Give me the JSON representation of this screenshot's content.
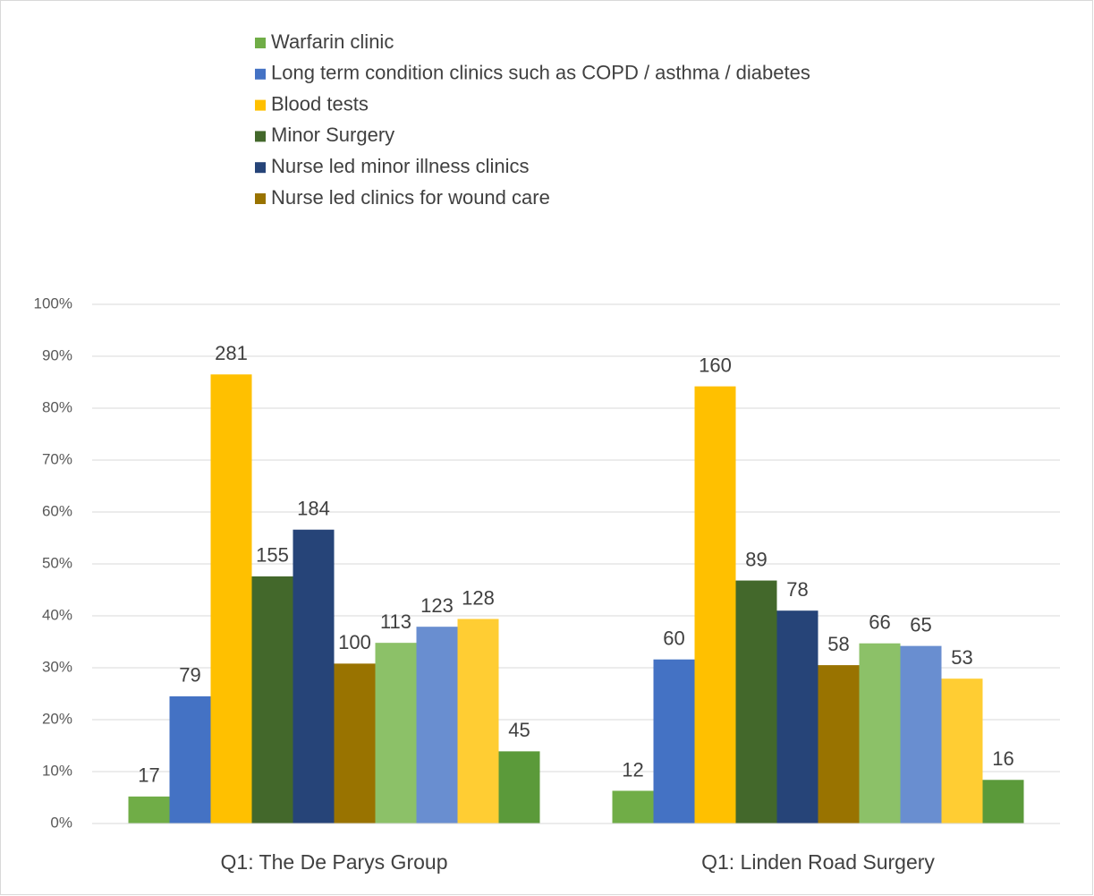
{
  "chart_data": {
    "type": "bar",
    "categories": [
      "Q1: The De Parys Group",
      "Q1: Linden Road Surgery"
    ],
    "series": [
      {
        "name": "Warfarin clinic",
        "color": "#70ad47",
        "values": [
          5.2,
          6.3
        ],
        "labels": [
          17,
          12
        ]
      },
      {
        "name": "Long term condition clinics such as COPD / asthma / diabetes",
        "color": "#4472c4",
        "values": [
          24.5,
          31.6
        ],
        "labels": [
          79,
          60
        ]
      },
      {
        "name": "Blood tests",
        "color": "#ffc000",
        "values": [
          86.5,
          84.2
        ],
        "labels": [
          281,
          160
        ]
      },
      {
        "name": "Minor Surgery",
        "color": "#43682b",
        "values": [
          47.6,
          46.8
        ],
        "labels": [
          155,
          89
        ]
      },
      {
        "name": "Nurse led minor illness clinics",
        "color": "#264478",
        "values": [
          56.6,
          41.0
        ],
        "labels": [
          184,
          78
        ]
      },
      {
        "name": "Nurse led clinics for wound care",
        "color": "#997300",
        "values": [
          30.8,
          30.5
        ],
        "labels": [
          100,
          58
        ]
      },
      {
        "color": "#8cc168",
        "values": [
          34.8,
          34.7
        ],
        "labels": [
          113,
          66
        ]
      },
      {
        "color": "#698ed0",
        "values": [
          37.9,
          34.2
        ],
        "labels": [
          123,
          65
        ]
      },
      {
        "color": "#ffcd33",
        "values": [
          39.4,
          27.9
        ],
        "labels": [
          128,
          53
        ]
      },
      {
        "color": "#5b9a3a",
        "values": [
          13.9,
          8.4
        ],
        "labels": [
          45,
          16
        ]
      }
    ],
    "ylim": [
      0,
      100
    ],
    "yticks": [
      {
        "value": 0,
        "label": "0%"
      },
      {
        "value": 10,
        "label": "10%"
      },
      {
        "value": 20,
        "label": "20%"
      },
      {
        "value": 30,
        "label": "30%"
      },
      {
        "value": 40,
        "label": "40%"
      },
      {
        "value": 50,
        "label": "50%"
      },
      {
        "value": 60,
        "label": "60%"
      },
      {
        "value": 70,
        "label": "70%"
      },
      {
        "value": 80,
        "label": "80%"
      },
      {
        "value": 90,
        "label": "90%"
      },
      {
        "value": 100,
        "label": "100%"
      }
    ],
    "grid": true
  }
}
